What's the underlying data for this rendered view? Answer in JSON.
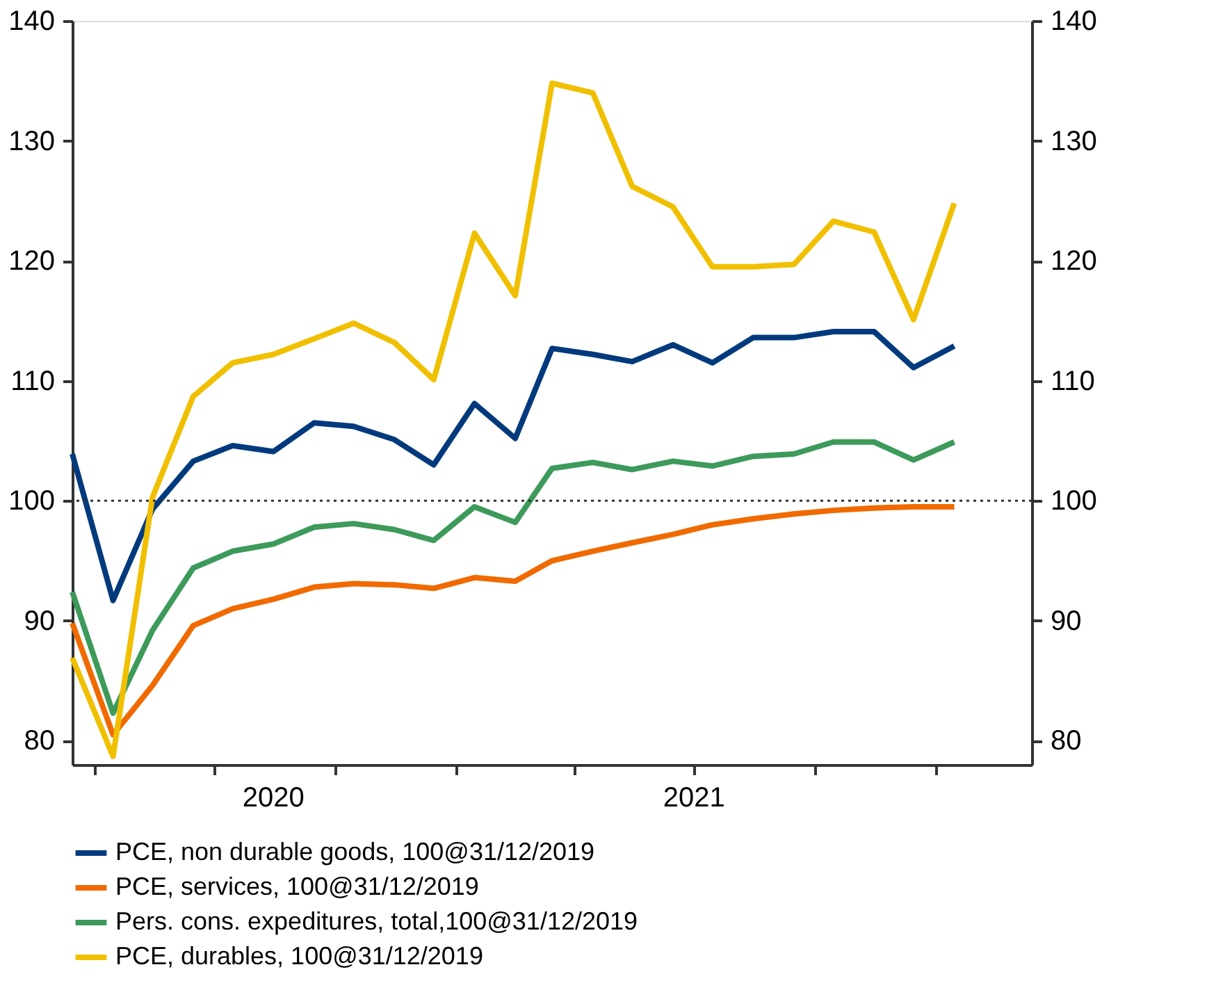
{
  "chart_data": {
    "type": "line",
    "x": [
      "2020-03-15",
      "2020-04-15",
      "2020-05-15",
      "2020-06-15",
      "2020-07-15",
      "2020-08-15",
      "2020-09-15",
      "2020-10-15",
      "2020-11-15",
      "2020-12-15",
      "2021-01-15",
      "2021-02-15",
      "2021-03-15",
      "2021-04-15",
      "2021-05-15",
      "2021-06-15",
      "2021-07-15",
      "2021-08-15",
      "2021-09-15",
      "2021-10-15",
      "2021-11-15",
      "2021-12-15",
      "2022-01-15"
    ],
    "series": [
      {
        "name": "PCE, non durable goods, 100@31/12/2019",
        "color": "#003a7d",
        "values": [
          103.9,
          91.7,
          99.3,
          103.3,
          104.6,
          104.1,
          106.5,
          106.2,
          105.1,
          103.0,
          108.1,
          105.2,
          112.7,
          112.2,
          111.6,
          113.0,
          111.5,
          113.6,
          113.6,
          114.1,
          114.1,
          111.1,
          112.9
        ]
      },
      {
        "name": "PCE, services, 100@31/12/2019",
        "color": "#f06a00",
        "values": [
          89.8,
          80.5,
          84.6,
          89.6,
          91.0,
          91.8,
          92.8,
          93.1,
          93.0,
          92.7,
          93.6,
          93.3,
          95.0,
          95.8,
          96.5,
          97.2,
          98.0,
          98.5,
          98.9,
          99.2,
          99.4,
          99.5,
          99.5
        ]
      },
      {
        "name": "Pers. cons. expeditures, total,100@31/12/2019",
        "color": "#3d9a5b",
        "values": [
          92.4,
          82.3,
          89.2,
          94.4,
          95.8,
          96.4,
          97.8,
          98.1,
          97.6,
          96.7,
          99.5,
          98.2,
          102.7,
          103.2,
          102.6,
          103.3,
          102.9,
          103.7,
          103.9,
          104.9,
          104.9,
          103.4,
          104.9
        ]
      },
      {
        "name": "PCE, durables, 100@31/12/2019",
        "color": "#f0c000",
        "values": [
          86.9,
          78.7,
          100.3,
          108.7,
          111.5,
          112.2,
          113.5,
          114.8,
          113.2,
          110.1,
          122.3,
          117.1,
          134.8,
          134.0,
          126.2,
          124.5,
          119.5,
          119.5,
          119.7,
          123.3,
          122.4,
          115.1,
          124.8
        ]
      }
    ],
    "xlim": [
      "2020-03-15",
      "2022-03-15"
    ],
    "xticks": [
      {
        "value": "2020-04-01",
        "label": null
      },
      {
        "value": "2020-07-01",
        "label": null
      },
      {
        "value": "2020-10-01",
        "label": null
      },
      {
        "value": "2021-01-01",
        "label": null
      },
      {
        "value": "2021-04-01",
        "label": null
      },
      {
        "value": "2021-07-01",
        "label": null
      },
      {
        "value": "2021-10-01",
        "label": null
      },
      {
        "value": "2022-01-01",
        "label": null
      },
      {
        "value": "2020-08-15",
        "label": "2020"
      },
      {
        "value": "2021-07-01",
        "label": "2021"
      }
    ],
    "ylim": [
      78,
      140
    ],
    "yticks": [
      80,
      90,
      100,
      110,
      120,
      130,
      140
    ],
    "y2lim": [
      78,
      140
    ],
    "y2ticks": [
      80,
      90,
      100,
      110,
      120,
      130,
      140
    ],
    "ref_lines": [
      {
        "axis": "y",
        "value": 100,
        "label": null,
        "color": "#333333",
        "line_style": "dotted"
      }
    ],
    "grid": false,
    "legend": "bottom",
    "line_style": "solid",
    "marker": "none"
  }
}
